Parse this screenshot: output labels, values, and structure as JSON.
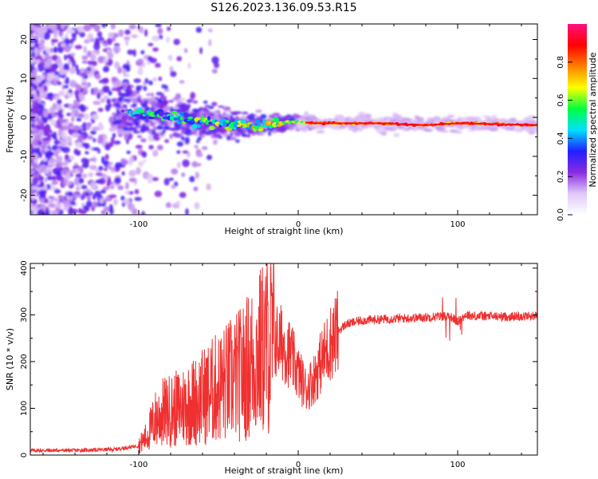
{
  "title": "S126.2023.136.09.53.R15",
  "chart_data": [
    {
      "type": "heatmap",
      "xlabel": "Height of straight line (km)",
      "ylabel": "Frequency (Hz)",
      "xlim": [
        -168,
        150
      ],
      "ylim": [
        -25,
        24
      ],
      "xticks": [
        -100,
        0,
        100
      ],
      "xtick_labels": [
        "-100",
        "0",
        "100"
      ],
      "yticks": [
        -20,
        -10,
        0,
        10,
        20
      ],
      "ytick_labels": [
        "-20",
        "-10",
        "0",
        "10",
        "20"
      ],
      "colorbar": {
        "label": "Normalized spectral amplitude",
        "range": [
          0,
          1
        ],
        "ticks": [
          0,
          0.2,
          0.4,
          0.6,
          0.8
        ],
        "tick_labels": [
          "0.0",
          "0.2",
          "0.4",
          "0.6",
          "0.8"
        ],
        "colors": [
          "#ffffff",
          "#e0c8f8",
          "#8a2be2",
          "#2020ff",
          "#00e0ff",
          "#00ff40",
          "#ffff00",
          "#ff8000",
          "#ff0000",
          "#ff1080"
        ]
      },
      "trace_frequency": [
        {
          "x": -90,
          "y": 1
        },
        {
          "x": -60,
          "y": -1
        },
        {
          "x": -30,
          "y": -2
        },
        {
          "x": -15,
          "y": -2
        },
        {
          "x": -5,
          "y": -1
        },
        {
          "x": 10,
          "y": -1.5
        },
        {
          "x": 50,
          "y": -1.5
        },
        {
          "x": 80,
          "y": -2
        },
        {
          "x": 100,
          "y": -1.5
        },
        {
          "x": 150,
          "y": -2
        }
      ]
    },
    {
      "type": "line",
      "xlabel": "Height of straight line (km)",
      "ylabel": "SNR (10 * v/v)",
      "xlim": [
        -168,
        150
      ],
      "ylim": [
        0,
        410
      ],
      "xticks": [
        -100,
        0,
        100
      ],
      "xtick_labels": [
        "-100",
        "0",
        "100"
      ],
      "yticks": [
        0,
        100,
        200,
        300,
        400
      ],
      "ytick_labels": [
        "0",
        "100",
        "200",
        "300",
        "400"
      ],
      "line_color": "#f03030",
      "series": [
        {
          "x": [
            -168,
            -140,
            -115,
            -100,
            -95,
            -90,
            -85,
            -80,
            -75,
            -70,
            -65,
            -60,
            -55,
            -50,
            -45,
            -40,
            -35,
            -30,
            -25,
            -20,
            -15,
            -10,
            -5,
            0,
            5,
            10,
            15,
            20,
            25,
            30,
            40,
            50,
            60,
            70,
            80,
            90,
            95,
            100,
            105,
            110,
            120,
            130,
            140,
            150
          ],
          "y": [
            10,
            10,
            12,
            20,
            40,
            75,
            90,
            95,
            100,
            110,
            115,
            125,
            135,
            145,
            155,
            165,
            175,
            195,
            215,
            235,
            245,
            240,
            215,
            175,
            140,
            165,
            205,
            240,
            265,
            280,
            288,
            290,
            292,
            293,
            295,
            297,
            298,
            285,
            300,
            298,
            297,
            296,
            297,
            298
          ]
        }
      ]
    }
  ]
}
